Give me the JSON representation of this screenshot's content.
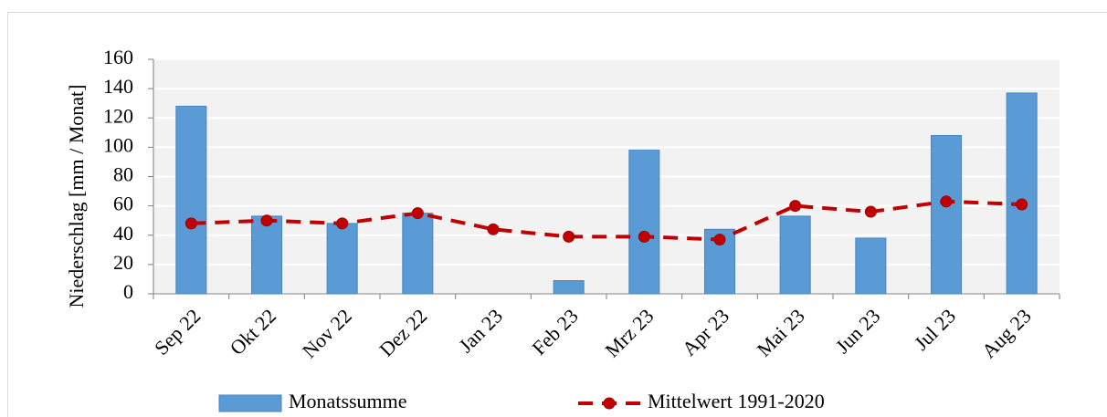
{
  "chart_data": {
    "type": "bar",
    "y_label": "Niederschlag [mm / Monat]",
    "categories": [
      "Sep 22",
      "Okt 22",
      "Nov 22",
      "Dez 22",
      "Jan 23",
      "Feb 23",
      "Mrz 23",
      "Apr 23",
      "Mai 23",
      "Jun 23",
      "Jul 23",
      "Aug 23"
    ],
    "series": [
      {
        "name": "Monatssumme",
        "type": "bar",
        "color": "#5b9bd5",
        "values": [
          128,
          53,
          48,
          55,
          0,
          9,
          98,
          44,
          53,
          38,
          108,
          137
        ]
      },
      {
        "name": "Mittelwert 1991-2020",
        "type": "line",
        "color": "#c00000",
        "values": [
          48,
          50,
          48,
          55,
          44,
          39,
          39,
          37,
          60,
          56,
          63,
          61
        ]
      }
    ],
    "ylim": [
      0,
      160
    ],
    "yticks": [
      0,
      20,
      40,
      60,
      80,
      100,
      120,
      140,
      160
    ],
    "grid": true,
    "legend": "bottom"
  }
}
